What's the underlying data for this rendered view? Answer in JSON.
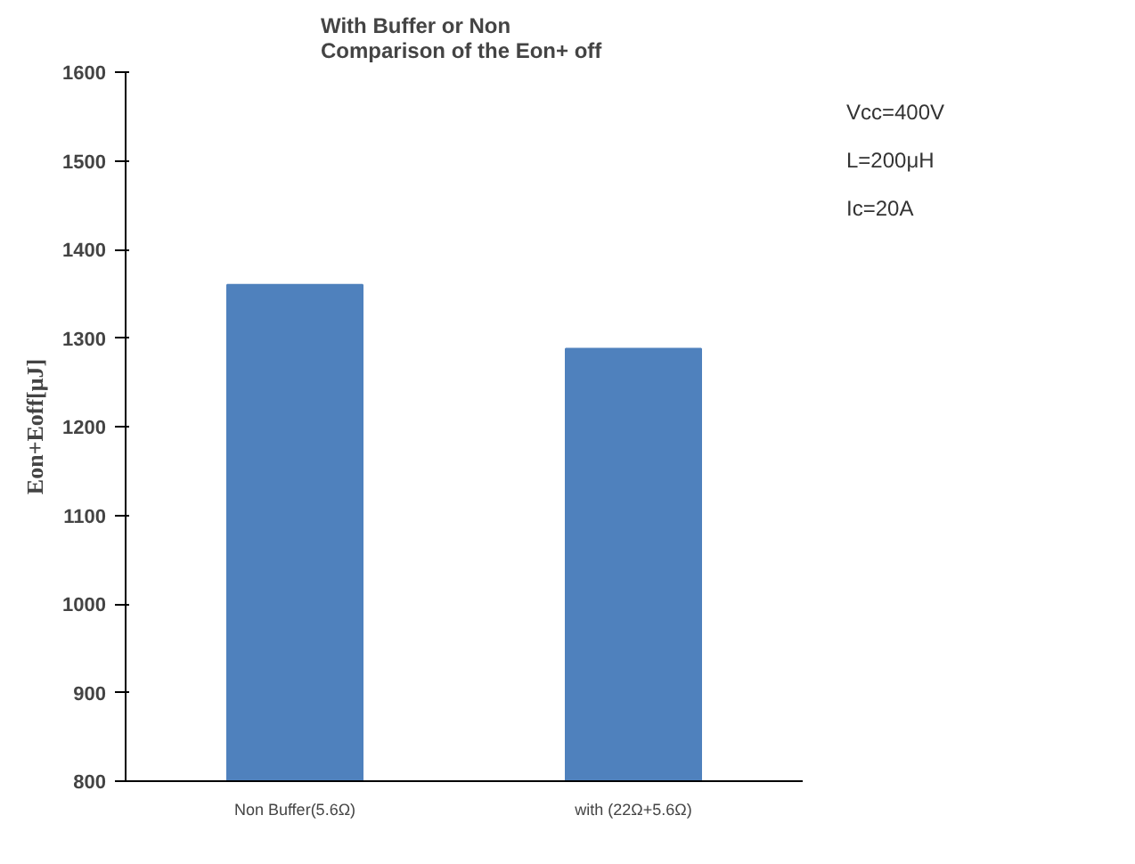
{
  "chart_data": {
    "type": "bar",
    "title": "With Buffer or Non\nComparison of the  Eon+ off",
    "ylabel": "Eon+Eoff[μJ]",
    "categories": [
      "Non Buffer(5.6Ω)",
      "with (22Ω+5.6Ω)"
    ],
    "series": [
      {
        "color": "#4f81bd",
        "values": [
          1360,
          1288
        ]
      }
    ],
    "ylim": [
      800,
      1600
    ],
    "yticks": [
      800,
      900,
      1000,
      1100,
      1200,
      1300,
      1400,
      1500,
      1600
    ],
    "grid": false,
    "annotations": [
      "Vcc=400V",
      "L=200μH",
      "Ic=20A"
    ]
  }
}
